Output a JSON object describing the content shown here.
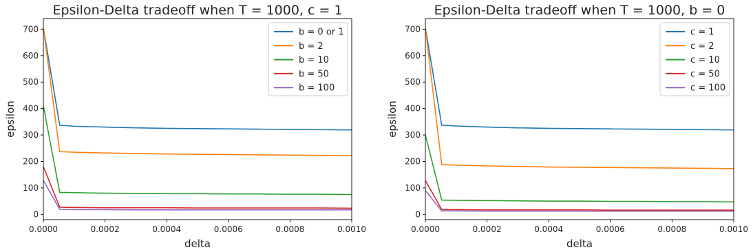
{
  "chart_data": [
    {
      "type": "line",
      "title": "Epsilon-Delta tradeoff when T = 1000, c = 1",
      "xlabel": "delta",
      "ylabel": "epsilon",
      "xlim": [
        0,
        0.001
      ],
      "ylim": [
        -20,
        740
      ],
      "xticks": [
        "0.0000",
        "0.0002",
        "0.0004",
        "0.0006",
        "0.0008",
        "0.0010"
      ],
      "yticks": [
        "0",
        "100",
        "200",
        "300",
        "400",
        "500",
        "600",
        "700"
      ],
      "grid": false,
      "legend_position": "top-right",
      "x": [
        1e-07,
        5.3e-05,
        0.0001,
        0.0002,
        0.0003,
        0.0004,
        0.0005,
        0.0006,
        0.0007,
        0.0008,
        0.0009,
        0.001
      ],
      "series": [
        {
          "name": "b = 0 or 1",
          "color": "#1f77b4",
          "values": [
            705,
            337,
            333,
            330,
            327,
            325,
            324,
            323,
            322,
            321,
            320,
            319
          ]
        },
        {
          "name": "b = 2",
          "color": "#ff7f0e",
          "values": [
            705,
            237,
            235,
            232,
            230,
            228,
            227,
            226,
            225,
            224,
            223,
            222
          ]
        },
        {
          "name": "b = 10",
          "color": "#2ca02c",
          "values": [
            410,
            83,
            82,
            80,
            79,
            78,
            78,
            77,
            77,
            76,
            76,
            75
          ]
        },
        {
          "name": "b = 50",
          "color": "#d62728",
          "values": [
            180,
            27,
            26,
            25,
            25,
            25,
            24,
            24,
            24,
            24,
            24,
            23
          ]
        },
        {
          "name": "b = 100",
          "color": "#9467bd",
          "values": [
            128,
            19,
            18,
            18,
            17,
            17,
            17,
            17,
            17,
            17,
            17,
            17
          ]
        }
      ]
    },
    {
      "type": "line",
      "title": "Epsilon-Delta tradeoff when T = 1000, b = 0",
      "xlabel": "delta",
      "ylabel": "epsilon",
      "xlim": [
        0,
        0.001
      ],
      "ylim": [
        -20,
        740
      ],
      "xticks": [
        "0.0000",
        "0.0002",
        "0.0004",
        "0.0006",
        "0.0008",
        "0.0010"
      ],
      "yticks": [
        "0",
        "100",
        "200",
        "300",
        "400",
        "500",
        "600",
        "700"
      ],
      "grid": false,
      "legend_position": "top-right",
      "x": [
        1e-07,
        5.3e-05,
        0.0001,
        0.0002,
        0.0003,
        0.0004,
        0.0005,
        0.0006,
        0.0007,
        0.0008,
        0.0009,
        0.001
      ],
      "series": [
        {
          "name": "c = 1",
          "color": "#1f77b4",
          "values": [
            705,
            337,
            334,
            330,
            327,
            325,
            324,
            323,
            322,
            321,
            320,
            319
          ]
        },
        {
          "name": "c = 2",
          "color": "#ff7f0e",
          "values": [
            705,
            188,
            186,
            183,
            181,
            179,
            178,
            177,
            176,
            175,
            174,
            173
          ]
        },
        {
          "name": "c = 10",
          "color": "#2ca02c",
          "values": [
            300,
            54,
            53,
            52,
            51,
            50,
            50,
            49,
            49,
            48,
            48,
            47
          ]
        },
        {
          "name": "c = 50",
          "color": "#d62728",
          "values": [
            128,
            18,
            18,
            17,
            17,
            17,
            17,
            16,
            16,
            16,
            16,
            16
          ]
        },
        {
          "name": "c = 100",
          "color": "#9467bd",
          "values": [
            90,
            13,
            13,
            12,
            12,
            12,
            12,
            12,
            12,
            12,
            12,
            12
          ]
        }
      ]
    }
  ]
}
